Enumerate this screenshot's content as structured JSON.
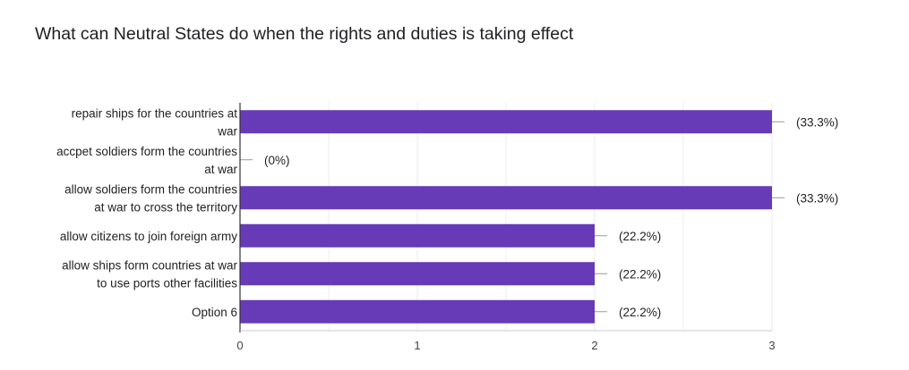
{
  "chart_data": {
    "type": "bar",
    "orientation": "horizontal",
    "title": "What can Neutral States do when the rights and duties is taking effect",
    "subtitle": "",
    "categories": [
      [
        "repair ships for the countries at",
        "war"
      ],
      [
        "accpet soldiers form the countries",
        "at war"
      ],
      [
        "allow soldiers form the countries",
        "at war to cross the territory"
      ],
      [
        "allow citizens to join foreign army"
      ],
      [
        "allow ships form countries at war",
        "to use ports other facilities"
      ],
      [
        "Option 6"
      ]
    ],
    "values": [
      3,
      0,
      3,
      2,
      2,
      2
    ],
    "value_labels": [
      "(33.3%)",
      "(0%)",
      "(33.3%)",
      "(22.2%)",
      "(22.2%)",
      "(22.2%)"
    ],
    "xlim": [
      0,
      3
    ],
    "x_ticks": [
      "0",
      "1",
      "2",
      "3"
    ],
    "xlabel": "",
    "ylabel": "",
    "grid": true,
    "bar_color": "#673ab7",
    "grid_color": "#ebebeb",
    "axis_color": "#333333"
  }
}
